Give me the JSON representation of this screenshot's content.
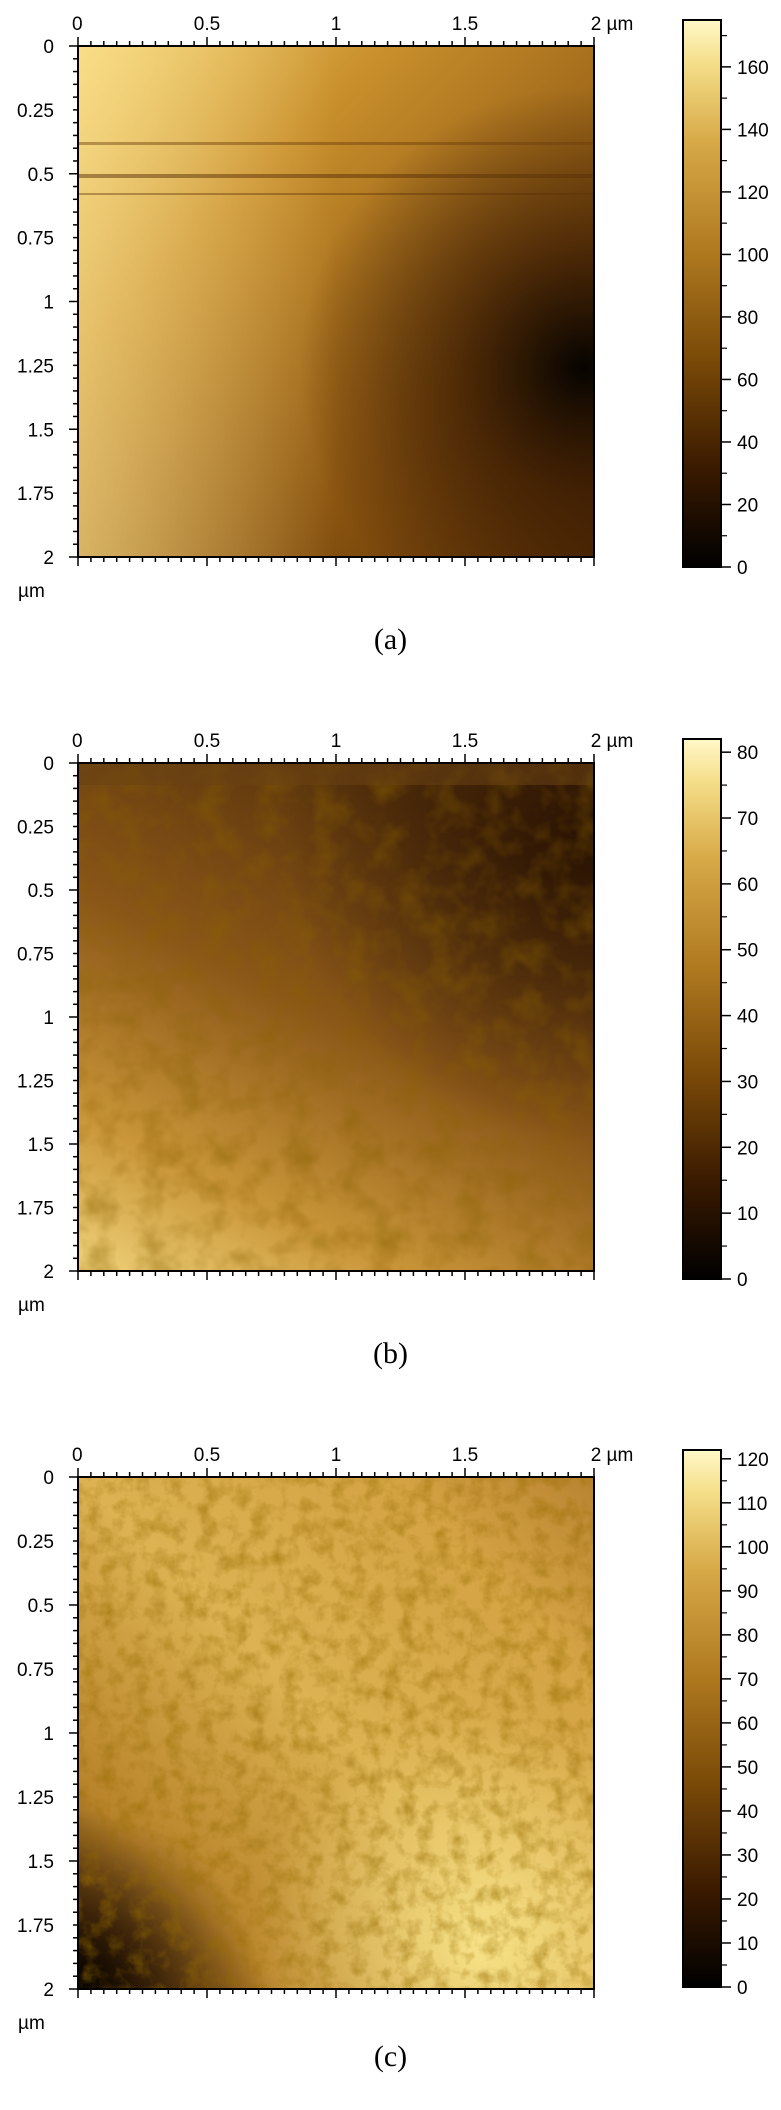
{
  "panels": [
    {
      "id": "a",
      "caption": "(a)",
      "x_ticks": [
        "0",
        "0.5",
        "1",
        "1.5",
        "2 µm"
      ],
      "y_ticks": [
        "0",
        "0.25",
        "0.5",
        "0.75",
        "1",
        "1.25",
        "1.5",
        "1.75",
        "2"
      ],
      "y_unit": "µm",
      "colorbar_ticks": [
        "0",
        "20",
        "40",
        "60",
        "80",
        "100",
        "120",
        "140",
        "160"
      ],
      "colorbar_max": 175
    },
    {
      "id": "b",
      "caption": "(b)",
      "x_ticks": [
        "0",
        "0.5",
        "1",
        "1.5",
        "2 µm"
      ],
      "y_ticks": [
        "0",
        "0.25",
        "0.5",
        "0.75",
        "1",
        "1.25",
        "1.5",
        "1.75",
        "2"
      ],
      "y_unit": "µm",
      "colorbar_ticks": [
        "0",
        "10",
        "20",
        "30",
        "40",
        "50",
        "60",
        "70",
        "80"
      ],
      "colorbar_max": 82
    },
    {
      "id": "c",
      "caption": "(c)",
      "x_ticks": [
        "0",
        "0.5",
        "1",
        "1.5",
        "2 µm"
      ],
      "y_ticks": [
        "0",
        "0.25",
        "0.5",
        "0.75",
        "1",
        "1.25",
        "1.5",
        "1.75",
        "2"
      ],
      "y_unit": "µm",
      "colorbar_ticks": [
        "0",
        "10",
        "20",
        "30",
        "40",
        "50",
        "60",
        "70",
        "80",
        "90",
        "100",
        "110",
        "120"
      ],
      "colorbar_max": 122
    }
  ],
  "colors": {
    "colormap": [
      "#000000",
      "#3a1a00",
      "#7a4a08",
      "#b07a20",
      "#d8aa48",
      "#f4de88",
      "#fff8c8"
    ]
  }
}
